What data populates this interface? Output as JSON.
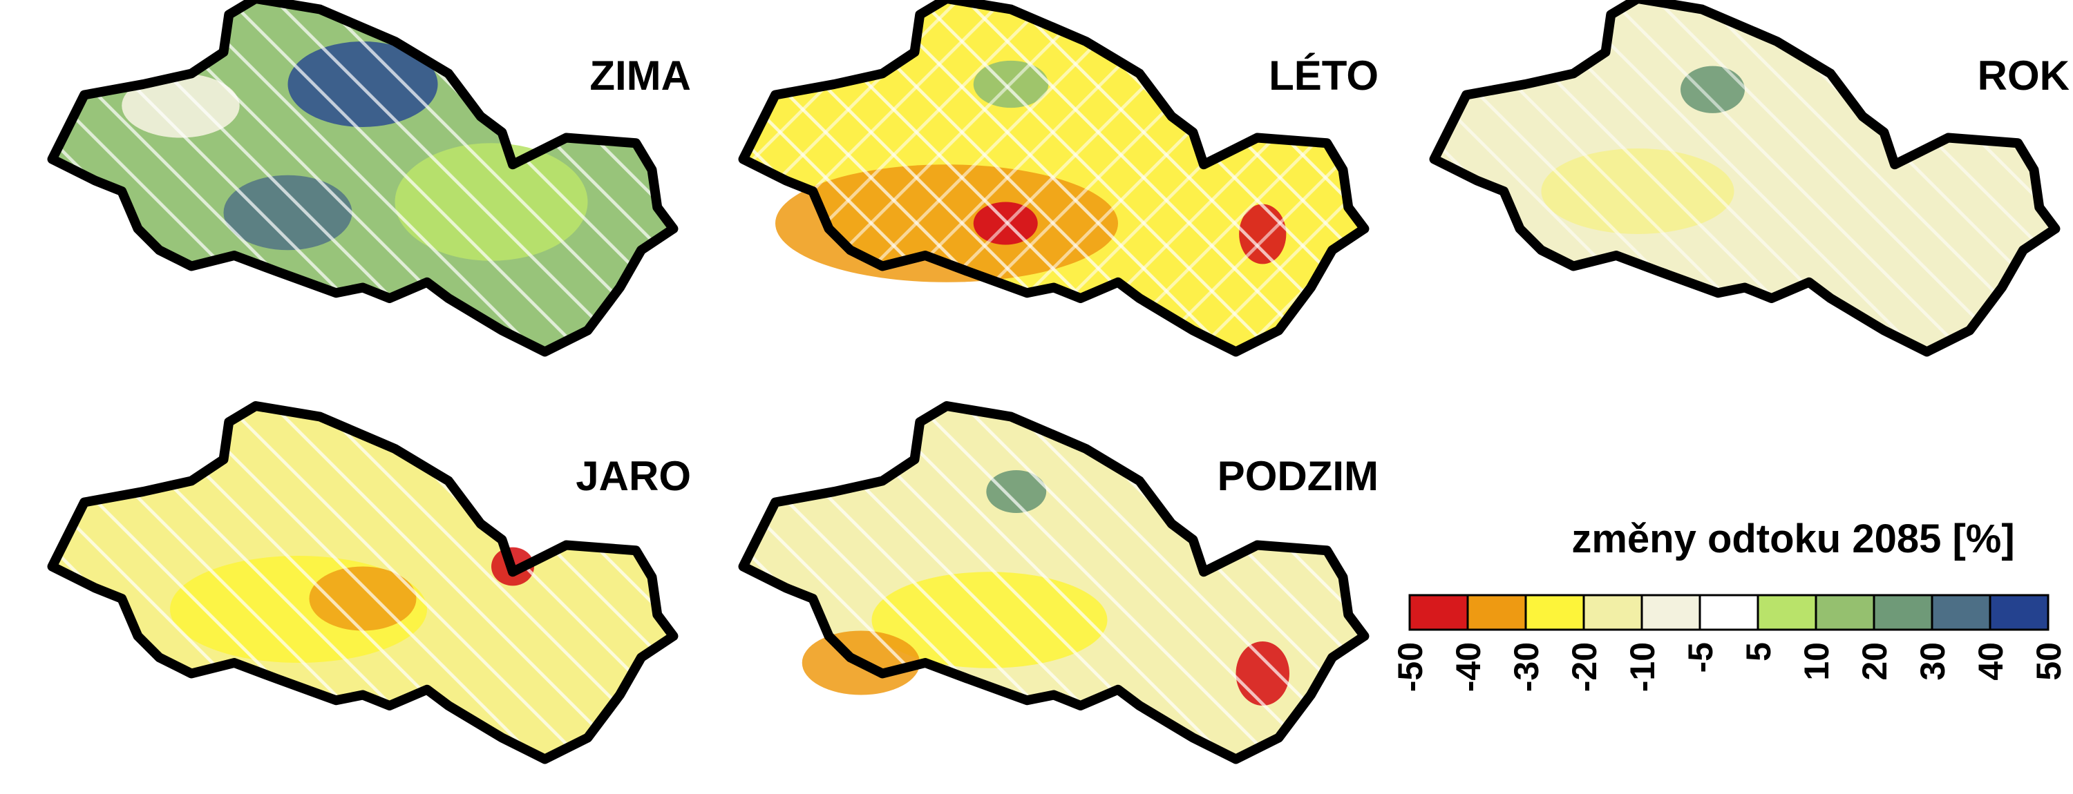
{
  "panels": [
    {
      "id": "zima",
      "title": "ZIMA",
      "base_color": "#98c47a"
    },
    {
      "id": "leto",
      "title": "LÉTO",
      "base_color": "#fdf04a"
    },
    {
      "id": "rok",
      "title": "ROK",
      "base_color": "#f2f0c8"
    },
    {
      "id": "jaro",
      "title": "JARO",
      "base_color": "#f6f08a"
    },
    {
      "id": "podzim",
      "title": "PODZIM",
      "base_color": "#f4f0b0"
    }
  ],
  "legend": {
    "title": "změny odtoku 2085 [%]",
    "tick_labels": [
      "-50",
      "-40",
      "-30",
      "-20",
      "-10",
      "-5",
      "5",
      "10",
      "20",
      "30",
      "40",
      "50"
    ],
    "colors": [
      "#d7191c",
      "#ee9a12",
      "#fdf43a",
      "#f2efa6",
      "#f3f2de",
      "#ffffff",
      "#b9e36a",
      "#95c06f",
      "#6f9a78",
      "#4d6f86",
      "#24428f"
    ]
  }
}
